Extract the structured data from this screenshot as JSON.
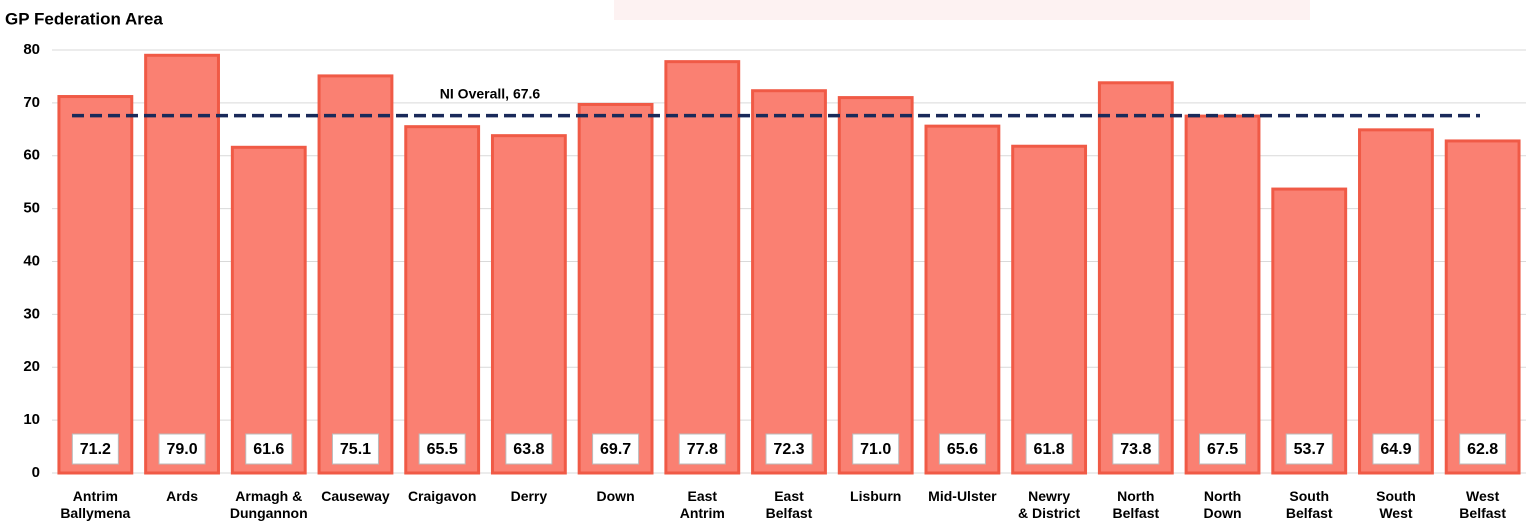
{
  "chart_data": {
    "type": "bar",
    "title": "GP Federation Area",
    "categories": [
      "Antrim\nBallymena",
      "Ards",
      "Armagh &\nDungannon",
      "Causeway",
      "Craigavon",
      "Derry",
      "Down",
      "East\nAntrim",
      "East\nBelfast",
      "Lisburn",
      "Mid-Ulster",
      "Newry\n& District",
      "North\nBelfast",
      "North\nDown",
      "South\nBelfast",
      "South\nWest",
      "West\nBelfast"
    ],
    "values": [
      71.2,
      79.0,
      61.6,
      75.1,
      65.5,
      63.8,
      69.7,
      77.8,
      72.3,
      71.0,
      65.6,
      61.8,
      73.8,
      67.5,
      53.7,
      64.9,
      62.8
    ],
    "value_labels": [
      "71.2",
      "79.0",
      "61.6",
      "75.1",
      "65.5",
      "63.8",
      "69.7",
      "77.8",
      "72.3",
      "71.0",
      "65.6",
      "61.8",
      "73.8",
      "67.5",
      "53.7",
      "64.9",
      "62.8"
    ],
    "color": "#fa8072",
    "edge_color": "#f05a46",
    "ylim": [
      0,
      80
    ],
    "yticks": [
      0,
      10,
      20,
      30,
      40,
      50,
      60,
      70,
      80
    ],
    "grid": true,
    "reference_line": {
      "label": "NI Overall, 67.6",
      "value": 67.6,
      "color": "#1a2a5a"
    }
  }
}
